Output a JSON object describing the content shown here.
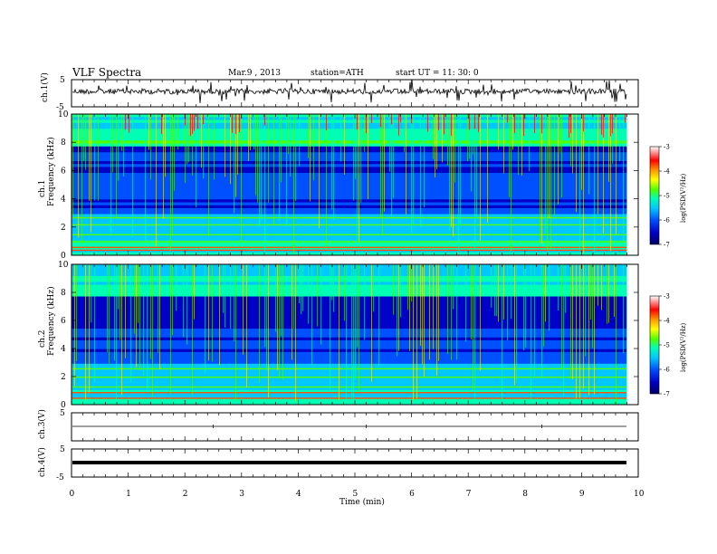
{
  "header": {
    "title": "VLF  Spectra",
    "date": "Mar.9  , 2013",
    "station": "station=ATH",
    "start": "start  UT =   11: 30: 0"
  },
  "colors": {
    "spectrogram_scale": [
      "#000064",
      "#0000c8",
      "#0050ff",
      "#00c8ff",
      "#00ffb4",
      "#50ff00",
      "#ffff00",
      "#ff9600",
      "#ff0000",
      "#ffffff"
    ]
  },
  "chart_data": [
    {
      "type": "line",
      "ylabel": "ch.1(V)",
      "ylim": [
        -5,
        5
      ],
      "y_ticks": [
        "5",
        "-5"
      ],
      "description_series": "waveform ch.1"
    },
    {
      "type": "heatmap",
      "ylabel_line1": "ch.1",
      "ylabel_line2": "Frequency  (kHz)",
      "ylim": [
        0,
        10
      ],
      "y_ticks": [
        "0",
        "2",
        "4",
        "6",
        "8",
        "10"
      ],
      "colorbar": {
        "label": "log(PSD(V²/Hz)",
        "range": [
          -7,
          -3
        ],
        "ticks": [
          "-3",
          "-4",
          "-5",
          "-6",
          "-7"
        ]
      }
    },
    {
      "type": "heatmap",
      "ylabel_line1": "ch.2",
      "ylabel_line2": "Frequency  (kHz)",
      "ylim": [
        0,
        10
      ],
      "y_ticks": [
        "0",
        "2",
        "4",
        "6",
        "8",
        "10"
      ],
      "colorbar": {
        "label": "log(PSD(V²/Hz)",
        "range": [
          -7,
          -3
        ],
        "ticks": [
          "-3",
          "-4",
          "-5",
          "-6",
          "-7"
        ]
      }
    },
    {
      "type": "line",
      "ylabel": "ch.3(V)",
      "ylim": [
        -5,
        5
      ],
      "y_ticks": [
        "5"
      ]
    },
    {
      "type": "line",
      "ylabel": "ch.4(V)",
      "ylim": [
        -5,
        5
      ],
      "y_ticks": [
        "5",
        "-5"
      ]
    }
  ],
  "xaxis": {
    "label": "Time  (min)",
    "xlim": [
      0,
      10
    ],
    "ticks": [
      "0",
      "1",
      "2",
      "3",
      "4",
      "5",
      "6",
      "7",
      "8",
      "9",
      "10"
    ],
    "data_end": 9.8
  }
}
